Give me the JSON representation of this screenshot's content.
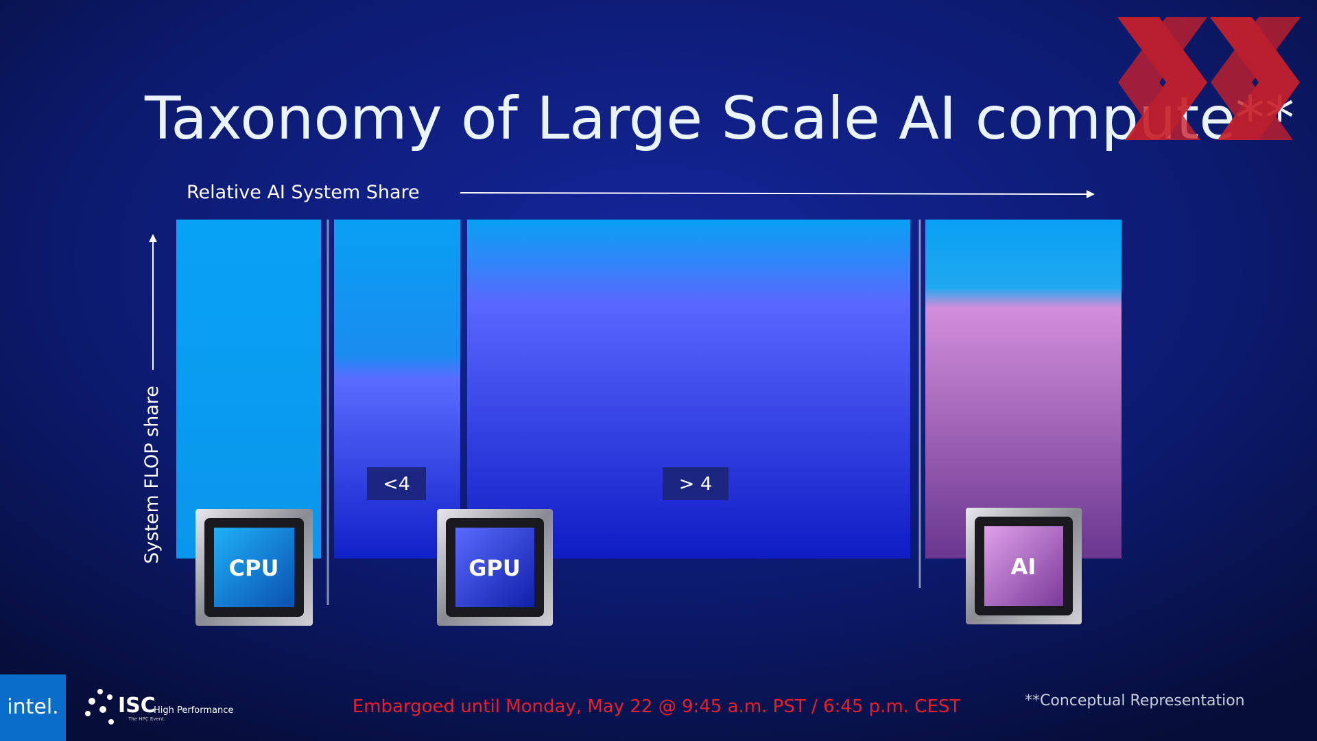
{
  "title": "Taxonomy of Large Scale AI compute**",
  "x_axis_label": "Relative AI System Share",
  "y_axis_label": "System FLOP share",
  "segment_labels": [
    "<4",
    "> 4"
  ],
  "chips": [
    "CPU",
    "GPU",
    "AI"
  ],
  "footer": {
    "brand": "intel.",
    "event": "ISC",
    "event_tagline": "High Performance",
    "event_sub": "The HPC Event.",
    "embargo": "Embargoed until Monday, May 22 @ 9:45 a.m. PST / 6:45 p.m. CEST",
    "note": "**Conceptual Representation"
  }
}
